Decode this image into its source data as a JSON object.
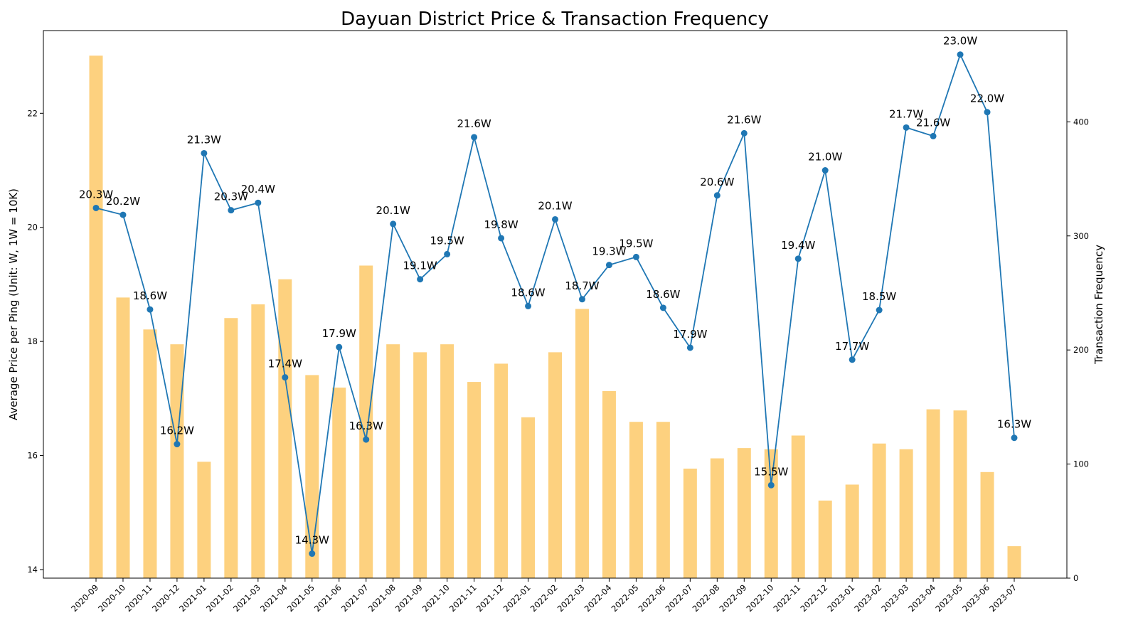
{
  "chart_data": {
    "type": "bar+line",
    "title": "Dayuan District Price & Transaction Frequency",
    "xlabel": "",
    "ylabel_left": "Average Price per Ping (Unit: W, 1W = 10K)",
    "ylabel_right": "Transaction Frequency",
    "ylim_left": [
      13.85,
      23.45
    ],
    "ylim_right": [
      0,
      480
    ],
    "yticks_left": [
      14,
      16,
      18,
      20,
      22
    ],
    "yticks_right": [
      0,
      100,
      200,
      300,
      400
    ],
    "categories": [
      "2020-09",
      "2020-10",
      "2020-11",
      "2020-12",
      "2021-01",
      "2021-02",
      "2021-03",
      "2021-04",
      "2021-05",
      "2021-06",
      "2021-07",
      "2021-08",
      "2021-09",
      "2021-10",
      "2021-11",
      "2021-12",
      "2022-01",
      "2022-02",
      "2022-03",
      "2022-04",
      "2022-05",
      "2022-06",
      "2022-07",
      "2022-08",
      "2022-09",
      "2022-10",
      "2022-11",
      "2022-12",
      "2023-01",
      "2023-02",
      "2023-03",
      "2023-04",
      "2023-05",
      "2023-06",
      "2023-07"
    ],
    "series": [
      {
        "axis": "right",
        "type": "bar",
        "color": "#FDD17F",
        "values": [
          458,
          246,
          218,
          205,
          102,
          228,
          240,
          262,
          178,
          167,
          274,
          205,
          198,
          205,
          172,
          188,
          141,
          198,
          236,
          164,
          137,
          137,
          96,
          105,
          114,
          113,
          125,
          68,
          82,
          118,
          113,
          148,
          147,
          93,
          28
        ]
      },
      {
        "axis": "left",
        "type": "line",
        "color": "#1F77B4",
        "values": [
          20.34,
          20.22,
          18.56,
          16.2,
          21.3,
          20.3,
          20.43,
          17.37,
          14.28,
          17.9,
          16.28,
          20.06,
          19.09,
          19.53,
          21.58,
          19.81,
          18.62,
          20.14,
          18.74,
          19.34,
          19.48,
          18.59,
          17.89,
          20.56,
          21.65,
          15.48,
          19.45,
          21.0,
          17.68,
          18.55,
          21.75,
          21.6,
          23.03,
          22.02,
          16.31
        ],
        "data_labels": [
          "20.3W",
          "20.2W",
          "18.6W",
          "16.2W",
          "21.3W",
          "20.3W",
          "20.4W",
          "17.4W",
          "14.3W",
          "17.9W",
          "16.3W",
          "20.1W",
          "19.1W",
          "19.5W",
          "21.6W",
          "19.8W",
          "18.6W",
          "20.1W",
          "18.7W",
          "19.3W",
          "19.5W",
          "18.6W",
          "17.9W",
          "20.6W",
          "21.6W",
          "15.5W",
          "19.4W",
          "21.0W",
          "17.7W",
          "18.5W",
          "21.7W",
          "21.6W",
          "23.0W",
          "22.0W",
          "16.3W"
        ]
      }
    ],
    "grid": false,
    "legend": "none"
  }
}
